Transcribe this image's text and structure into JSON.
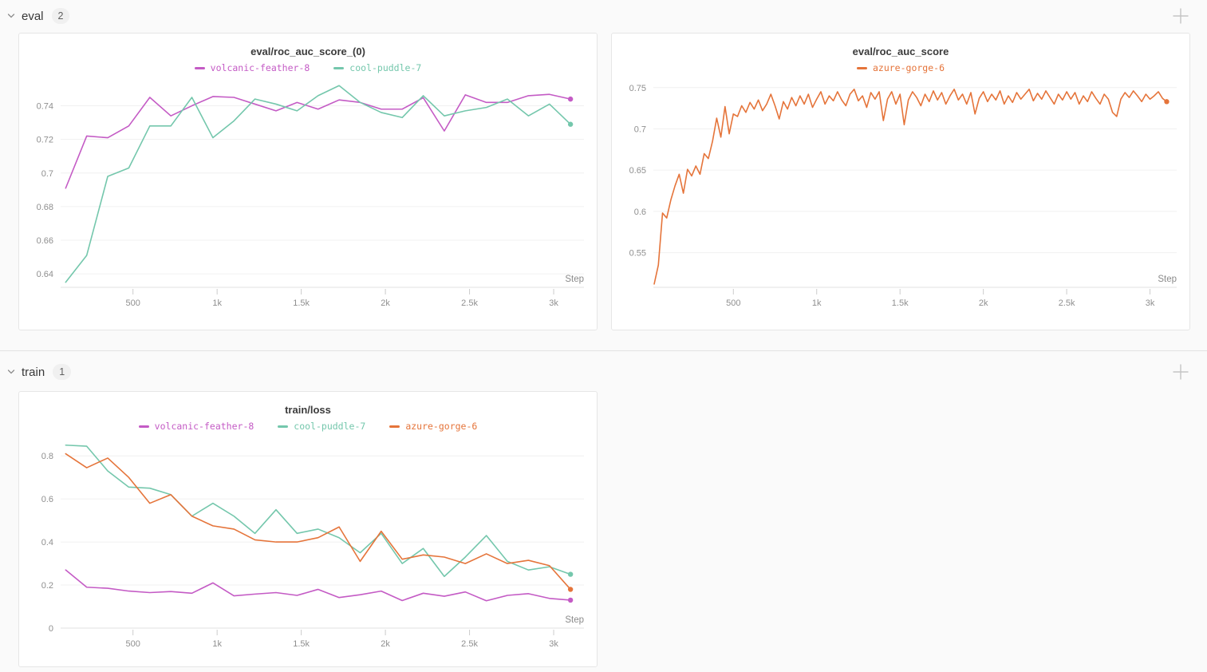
{
  "sections": [
    {
      "title": "eval",
      "count": "2"
    },
    {
      "title": "train",
      "count": "1"
    }
  ],
  "ui_colors": {
    "background": "#fafafa",
    "panel_border": "#e6e6e6",
    "grid_line": "#f0f0f0",
    "axis_line": "#e0e0e0",
    "tick_text": "#8f8f8f",
    "icon_gray": "#c4c4c4"
  },
  "chart_data": [
    {
      "type": "line",
      "title": "eval/roc_auc_score_(0)",
      "xlabel": "Step",
      "grid": true,
      "legend_position": "top",
      "xlim": [
        70,
        3180
      ],
      "ylim": [
        0.632,
        0.7545
      ],
      "x_ticks": {
        "values": [
          500,
          1000,
          1500,
          2000,
          2500,
          3000
        ],
        "labels": [
          "500",
          "1k",
          "1.5k",
          "2k",
          "2.5k",
          "3k"
        ]
      },
      "y_ticks": {
        "values": [
          0.64,
          0.66,
          0.68,
          0.7,
          0.72,
          0.74
        ],
        "labels": [
          "0.64",
          "0.66",
          "0.68",
          "0.7",
          "0.72",
          "0.74"
        ]
      },
      "x": [
        100,
        225,
        350,
        475,
        600,
        725,
        850,
        975,
        1100,
        1225,
        1350,
        1475,
        1600,
        1725,
        1850,
        1975,
        2100,
        2225,
        2350,
        2475,
        2600,
        2725,
        2850,
        2975,
        3100
      ],
      "series": [
        {
          "name": "volcanic-feather-8",
          "color": "#c45bc5",
          "values": [
            0.691,
            0.722,
            0.721,
            0.728,
            0.745,
            0.734,
            0.74,
            0.7455,
            0.745,
            0.741,
            0.737,
            0.742,
            0.738,
            0.7435,
            0.742,
            0.738,
            0.738,
            0.7448,
            0.725,
            0.7465,
            0.742,
            0.742,
            0.746,
            0.7468,
            0.744
          ]
        },
        {
          "name": "cool-puddle-7",
          "color": "#74c7ac",
          "values": [
            0.635,
            0.651,
            0.698,
            0.703,
            0.728,
            0.728,
            0.745,
            0.721,
            0.731,
            0.744,
            0.741,
            0.737,
            0.746,
            0.752,
            0.742,
            0.736,
            0.733,
            0.746,
            0.734,
            0.737,
            0.739,
            0.744,
            0.734,
            0.741,
            0.729
          ]
        }
      ]
    },
    {
      "type": "line",
      "title": "eval/roc_auc_score",
      "xlabel": "Step",
      "grid": true,
      "legend_position": "top",
      "xlim": [
        20,
        3160
      ],
      "ylim": [
        0.508,
        0.7575
      ],
      "x_ticks": {
        "values": [
          500,
          1000,
          1500,
          2000,
          2500,
          3000
        ],
        "labels": [
          "500",
          "1k",
          "1.5k",
          "2k",
          "2.5k",
          "3k"
        ]
      },
      "y_ticks": {
        "values": [
          0.55,
          0.6,
          0.65,
          0.7,
          0.75
        ],
        "labels": [
          "0.55",
          "0.6",
          "0.65",
          "0.7",
          "0.75"
        ]
      },
      "x_start": 25,
      "x_step": 25,
      "series": [
        {
          "name": "azure-gorge-6",
          "color": "#e5743a",
          "values": [
            0.512,
            0.535,
            0.598,
            0.592,
            0.614,
            0.631,
            0.645,
            0.622,
            0.651,
            0.643,
            0.655,
            0.645,
            0.67,
            0.664,
            0.685,
            0.713,
            0.69,
            0.727,
            0.694,
            0.718,
            0.715,
            0.728,
            0.72,
            0.732,
            0.724,
            0.735,
            0.722,
            0.73,
            0.742,
            0.728,
            0.712,
            0.733,
            0.724,
            0.738,
            0.728,
            0.74,
            0.73,
            0.742,
            0.726,
            0.736,
            0.745,
            0.73,
            0.74,
            0.734,
            0.745,
            0.735,
            0.728,
            0.742,
            0.748,
            0.734,
            0.74,
            0.726,
            0.744,
            0.736,
            0.745,
            0.71,
            0.736,
            0.745,
            0.73,
            0.742,
            0.705,
            0.735,
            0.745,
            0.738,
            0.728,
            0.742,
            0.733,
            0.746,
            0.735,
            0.744,
            0.73,
            0.74,
            0.748,
            0.735,
            0.742,
            0.73,
            0.744,
            0.718,
            0.737,
            0.745,
            0.733,
            0.742,
            0.735,
            0.746,
            0.73,
            0.74,
            0.732,
            0.744,
            0.736,
            0.742,
            0.748,
            0.734,
            0.743,
            0.736,
            0.746,
            0.738,
            0.73,
            0.742,
            0.735,
            0.745,
            0.736,
            0.744,
            0.73,
            0.74,
            0.733,
            0.745,
            0.737,
            0.73,
            0.742,
            0.736,
            0.72,
            0.715,
            0.736,
            0.744,
            0.738,
            0.746,
            0.74,
            0.733,
            0.742,
            0.736,
            0.74,
            0.745,
            0.737,
            0.733
          ]
        }
      ]
    },
    {
      "type": "line",
      "title": "train/loss",
      "xlabel": "Step",
      "grid": true,
      "legend_position": "top",
      "xlim": [
        70,
        3180
      ],
      "ylim": [
        0,
        0.875
      ],
      "x_ticks": {
        "values": [
          500,
          1000,
          1500,
          2000,
          2500,
          3000
        ],
        "labels": [
          "500",
          "1k",
          "1.5k",
          "2k",
          "2.5k",
          "3k"
        ]
      },
      "y_ticks": {
        "values": [
          0,
          0.2,
          0.4,
          0.6,
          0.8
        ],
        "labels": [
          "0",
          "0.2",
          "0.4",
          "0.6",
          "0.8"
        ]
      },
      "x": [
        100,
        225,
        350,
        475,
        600,
        725,
        850,
        975,
        1100,
        1225,
        1350,
        1475,
        1600,
        1725,
        1850,
        1975,
        2100,
        2225,
        2350,
        2475,
        2600,
        2725,
        2850,
        2975,
        3100
      ],
      "series": [
        {
          "name": "volcanic-feather-8",
          "color": "#c45bc5",
          "values": [
            0.27,
            0.19,
            0.185,
            0.172,
            0.165,
            0.17,
            0.162,
            0.21,
            0.15,
            0.158,
            0.165,
            0.152,
            0.18,
            0.142,
            0.155,
            0.172,
            0.128,
            0.162,
            0.148,
            0.168,
            0.127,
            0.152,
            0.16,
            0.138,
            0.13
          ]
        },
        {
          "name": "cool-puddle-7",
          "color": "#74c7ac",
          "values": [
            0.85,
            0.845,
            0.73,
            0.655,
            0.65,
            0.62,
            0.52,
            0.58,
            0.52,
            0.44,
            0.55,
            0.44,
            0.46,
            0.42,
            0.35,
            0.44,
            0.3,
            0.37,
            0.24,
            0.33,
            0.43,
            0.31,
            0.27,
            0.285,
            0.25
          ]
        },
        {
          "name": "azure-gorge-6",
          "color": "#e5743a",
          "values": [
            0.81,
            0.745,
            0.79,
            0.7,
            0.58,
            0.62,
            0.52,
            0.475,
            0.46,
            0.41,
            0.4,
            0.4,
            0.42,
            0.47,
            0.31,
            0.45,
            0.32,
            0.34,
            0.33,
            0.3,
            0.345,
            0.3,
            0.315,
            0.29,
            0.18
          ]
        }
      ]
    }
  ]
}
